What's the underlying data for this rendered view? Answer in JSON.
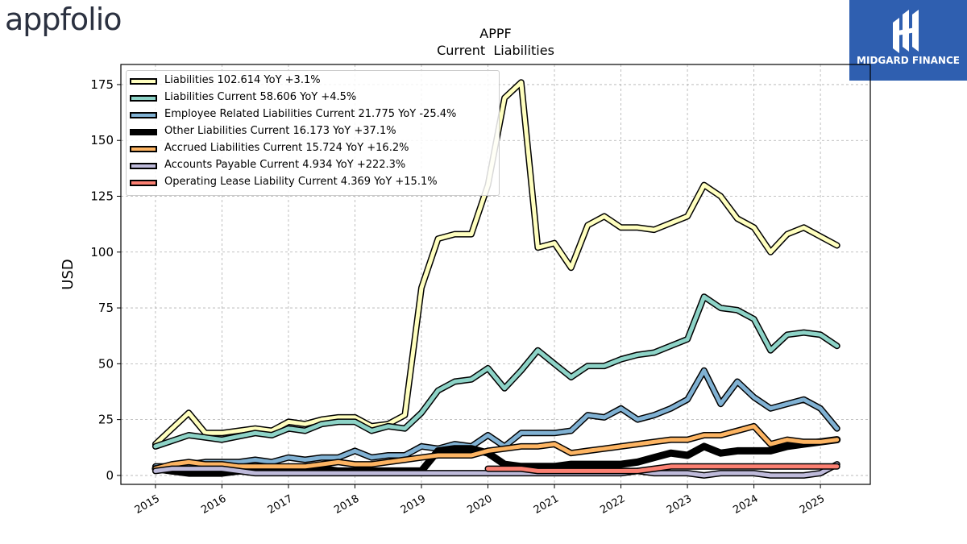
{
  "brand": {
    "name": "appfolio"
  },
  "badge": {
    "name": "MIDGARD FINANCE",
    "color": "#2f5fb0",
    "icon": "midgard-logo-icon"
  },
  "chart_data": {
    "type": "line",
    "title": "APPF",
    "subtitle": "Current  Liabilities",
    "ylabel": "USD",
    "xlabel": "",
    "ylim": [
      -4,
      184
    ],
    "xlim": [
      2014.48,
      2025.75
    ],
    "yticks": [
      0,
      25,
      50,
      75,
      100,
      125,
      150,
      175
    ],
    "xticks": [
      "2015",
      "2016",
      "2017",
      "2018",
      "2019",
      "2020",
      "2021",
      "2022",
      "2023",
      "2024",
      "2025"
    ],
    "grid": true,
    "legend_position": "top-left",
    "series": [
      {
        "name": "Liabilities",
        "legend": "Liabilities  102.614 YoY +3.1%",
        "color": "#ffffbf",
        "x": [
          2015.0,
          2015.5,
          2015.75,
          2016.0,
          2016.5,
          2016.75,
          2017.0,
          2017.25,
          2017.5,
          2017.75,
          2018.0,
          2018.25,
          2018.5,
          2018.75,
          2019.0,
          2019.25,
          2019.5,
          2019.75,
          2020.0,
          2020.25,
          2020.5,
          2020.75,
          2021.0,
          2021.25,
          2021.5,
          2021.75,
          2022.0,
          2022.25,
          2022.5,
          2022.75,
          2023.0,
          2023.25,
          2023.5,
          2023.75,
          2024.0,
          2024.25,
          2024.5,
          2024.75,
          2025.0,
          2025.25
        ],
        "y": [
          14,
          28,
          19,
          19,
          21,
          20,
          24,
          23,
          25,
          26,
          26,
          22,
          23,
          27,
          84,
          106,
          108,
          108,
          130,
          169,
          176,
          102,
          104,
          93,
          112,
          116,
          111,
          111,
          110,
          113,
          116,
          130,
          125,
          115,
          111,
          100,
          108,
          111,
          107,
          103
        ]
      },
      {
        "name": "Liabilities Current",
        "legend": "Liabilities Current  58.606 YoY +4.5%",
        "color": "#8dd3c7",
        "x": [
          2015.0,
          2015.5,
          2015.75,
          2016.0,
          2016.5,
          2016.75,
          2017.0,
          2017.25,
          2017.5,
          2017.75,
          2018.0,
          2018.25,
          2018.5,
          2018.75,
          2019.0,
          2019.25,
          2019.5,
          2019.75,
          2020.0,
          2020.25,
          2020.5,
          2020.75,
          2021.0,
          2021.25,
          2021.5,
          2021.75,
          2022.0,
          2022.25,
          2022.5,
          2022.75,
          2023.0,
          2023.25,
          2023.5,
          2023.75,
          2024.0,
          2024.25,
          2024.5,
          2024.75,
          2025.0,
          2025.25
        ],
        "y": [
          13,
          18,
          17,
          16,
          19,
          18,
          21,
          20,
          23,
          24,
          24,
          20,
          22,
          21,
          28,
          38,
          42,
          43,
          48,
          39,
          47,
          56,
          50,
          44,
          49,
          49,
          52,
          54,
          55,
          58,
          61,
          80,
          75,
          74,
          70,
          56,
          63,
          64,
          63,
          58
        ]
      },
      {
        "name": "Employee Related Liabilities Current",
        "legend": "Employee Related Liabilities Current  21.775 YoY -25.4%",
        "color": "#80b1d3",
        "x": [
          2015.0,
          2015.25,
          2015.5,
          2015.75,
          2016.0,
          2016.25,
          2016.5,
          2016.75,
          2017.0,
          2017.25,
          2017.5,
          2017.75,
          2018.0,
          2018.25,
          2018.5,
          2018.75,
          2019.0,
          2019.25,
          2019.5,
          2019.75,
          2020.0,
          2020.25,
          2020.5,
          2020.75,
          2021.0,
          2021.25,
          2021.5,
          2021.75,
          2022.0,
          2022.25,
          2022.5,
          2022.75,
          2023.0,
          2023.25,
          2023.5,
          2023.75,
          2024.0,
          2024.25,
          2024.5,
          2024.75,
          2025.0,
          2025.25
        ],
        "y": [
          4,
          4,
          5,
          6,
          6,
          6,
          7,
          6,
          8,
          7,
          8,
          8,
          11,
          8,
          9,
          9,
          13,
          12,
          14,
          13,
          18,
          13,
          19,
          19,
          19,
          20,
          27,
          26,
          30,
          25,
          27,
          30,
          34,
          47,
          32,
          42,
          35,
          30,
          32,
          34,
          30,
          21
        ]
      },
      {
        "name": "Other Liabilities Current",
        "legend": "Other Liabilities Current  16.173 YoY +37.1%",
        "color": "#000000",
        "x": [
          2015.0,
          2015.25,
          2015.5,
          2015.75,
          2016.0,
          2016.25,
          2016.5,
          2016.75,
          2017.0,
          2017.25,
          2017.5,
          2017.75,
          2018.0,
          2018.25,
          2018.5,
          2018.75,
          2019.0,
          2019.25,
          2019.5,
          2019.75,
          2020.0,
          2020.25,
          2020.5,
          2020.75,
          2021.0,
          2021.25,
          2021.5,
          2021.75,
          2022.0,
          2022.25,
          2022.5,
          2022.75,
          2023.0,
          2023.25,
          2023.5,
          2023.75,
          2024.0,
          2024.25,
          2024.5,
          2024.75,
          2025.0,
          2025.25
        ],
        "y": [
          3,
          2,
          1,
          1,
          1,
          2,
          2,
          3,
          3,
          3,
          3,
          2,
          2,
          2,
          2,
          2,
          2,
          11,
          12,
          12,
          10,
          5,
          4,
          4,
          4,
          5,
          5,
          5,
          5,
          6,
          8,
          10,
          9,
          13,
          10,
          11,
          11,
          11,
          13,
          14,
          15,
          16
        ]
      },
      {
        "name": "Accrued Liabilities Current",
        "legend": "Accrued Liabilities Current  15.724 YoY +16.2%",
        "color": "#fdb462",
        "x": [
          2015.0,
          2015.25,
          2015.5,
          2015.75,
          2016.0,
          2016.25,
          2016.5,
          2016.75,
          2017.0,
          2017.25,
          2017.5,
          2017.75,
          2018.0,
          2018.25,
          2018.5,
          2018.75,
          2019.0,
          2019.25,
          2019.5,
          2019.75,
          2020.0,
          2020.25,
          2020.5,
          2020.75,
          2021.0,
          2021.25,
          2021.5,
          2021.75,
          2022.0,
          2022.25,
          2022.5,
          2022.75,
          2023.0,
          2023.25,
          2023.5,
          2023.75,
          2024.0,
          2024.25,
          2024.5,
          2024.75,
          2025.0,
          2025.25
        ],
        "y": [
          3,
          5,
          6,
          5,
          5,
          4,
          4,
          4,
          4,
          4,
          5,
          6,
          5,
          5,
          6,
          7,
          8,
          9,
          9,
          9,
          11,
          12,
          13,
          13,
          14,
          10,
          11,
          12,
          13,
          14,
          15,
          16,
          16,
          18,
          18,
          20,
          22,
          14,
          16,
          15,
          15,
          16
        ]
      },
      {
        "name": "Accounts Payable Current",
        "legend": "Accounts Payable Current  4.934 YoY +222.3%",
        "color": "#bebada",
        "x": [
          2015.0,
          2015.25,
          2015.5,
          2015.75,
          2016.0,
          2016.25,
          2016.5,
          2016.75,
          2017.0,
          2017.25,
          2017.5,
          2017.75,
          2018.0,
          2018.25,
          2018.5,
          2018.75,
          2019.0,
          2019.25,
          2019.5,
          2019.75,
          2020.0,
          2020.25,
          2020.5,
          2020.75,
          2021.0,
          2021.25,
          2021.5,
          2021.75,
          2022.0,
          2022.25,
          2022.5,
          2022.75,
          2023.0,
          2023.25,
          2023.5,
          2023.75,
          2024.0,
          2024.25,
          2024.5,
          2024.75,
          2025.0,
          2025.25
        ],
        "y": [
          2,
          3,
          3,
          3,
          3,
          2,
          1,
          1,
          1,
          1,
          1,
          1,
          1,
          1,
          1,
          1,
          1,
          1,
          1,
          1,
          1,
          1,
          1,
          1,
          1,
          1,
          1,
          1,
          1,
          2,
          1,
          1,
          1,
          0,
          1,
          1,
          1,
          0,
          0,
          0,
          1,
          5
        ]
      },
      {
        "name": "Operating Lease Liability Current",
        "legend": "Operating Lease Liability Current  4.369 YoY +15.1%",
        "color": "#fb8072",
        "x": [
          2020.0,
          2020.25,
          2020.5,
          2020.75,
          2021.0,
          2021.25,
          2021.5,
          2021.75,
          2022.0,
          2022.25,
          2022.5,
          2022.75,
          2023.0,
          2023.25,
          2023.5,
          2023.75,
          2024.0,
          2024.25,
          2024.5,
          2024.75,
          2025.0,
          2025.25
        ],
        "y": [
          3,
          3,
          3,
          2,
          2,
          2,
          2,
          2,
          2,
          2,
          3,
          4,
          4,
          4,
          4,
          4,
          4,
          4,
          4,
          4,
          4,
          4
        ]
      }
    ]
  }
}
